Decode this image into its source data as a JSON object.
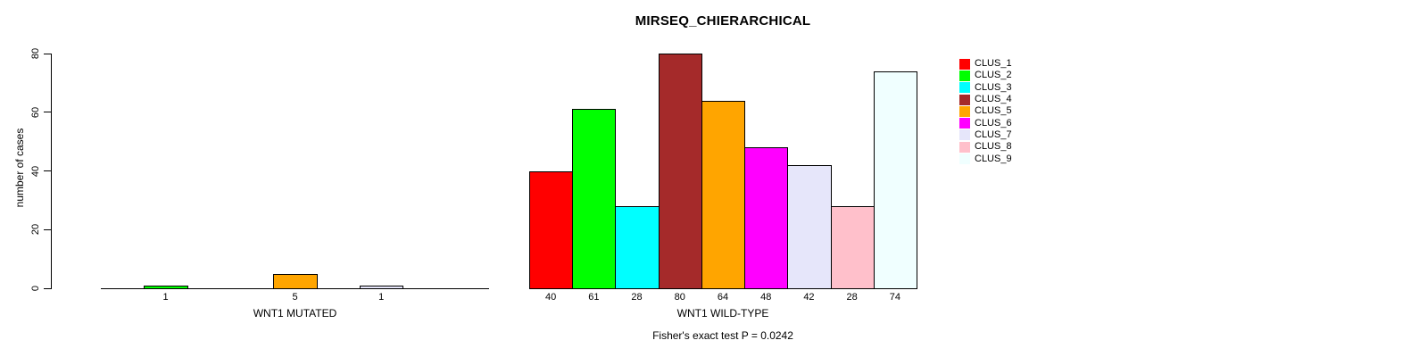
{
  "title": "MIRSEQ_CHIERARCHICAL",
  "annotation": "Fisher's exact test P = 0.0242",
  "chart_data": [
    {
      "type": "bar",
      "title": "MIRSEQ_CHIERARCHICAL",
      "xlabel": "WNT1 MUTATED",
      "ylabel": "number of cases",
      "ylim": [
        0,
        80
      ],
      "yticks": [
        0,
        20,
        40,
        60,
        80
      ],
      "grid": false,
      "categories": [
        "CLUS_1",
        "CLUS_2",
        "CLUS_3",
        "CLUS_4",
        "CLUS_5",
        "CLUS_6",
        "CLUS_7",
        "CLUS_8",
        "CLUS_9"
      ],
      "values": [
        0,
        1,
        0,
        0,
        5,
        0,
        1,
        0,
        0
      ],
      "bar_labels": [
        "",
        "1",
        "",
        "",
        "5",
        "",
        "1",
        "",
        ""
      ]
    },
    {
      "type": "bar",
      "xlabel": "WNT1 WILD-TYPE",
      "ylim": [
        0,
        80
      ],
      "grid": false,
      "categories": [
        "CLUS_1",
        "CLUS_2",
        "CLUS_3",
        "CLUS_4",
        "CLUS_5",
        "CLUS_6",
        "CLUS_7",
        "CLUS_8",
        "CLUS_9"
      ],
      "values": [
        40,
        61,
        28,
        80,
        64,
        48,
        42,
        28,
        74
      ],
      "bar_labels": [
        "40",
        "61",
        "28",
        "80",
        "64",
        "48",
        "42",
        "28",
        "74"
      ]
    }
  ],
  "legend": {
    "position": "right",
    "entries": [
      {
        "label": "CLUS_1",
        "color": "#FF0000"
      },
      {
        "label": "CLUS_2",
        "color": "#00FF00"
      },
      {
        "label": "CLUS_3",
        "color": "#00FFFF"
      },
      {
        "label": "CLUS_4",
        "color": "#A52A2A"
      },
      {
        "label": "CLUS_5",
        "color": "#FFA500"
      },
      {
        "label": "CLUS_6",
        "color": "#FF00FF"
      },
      {
        "label": "CLUS_7",
        "color": "#E6E6FA"
      },
      {
        "label": "CLUS_8",
        "color": "#FFC0CB"
      },
      {
        "label": "CLUS_9",
        "color": "#F0FFFF"
      }
    ]
  }
}
